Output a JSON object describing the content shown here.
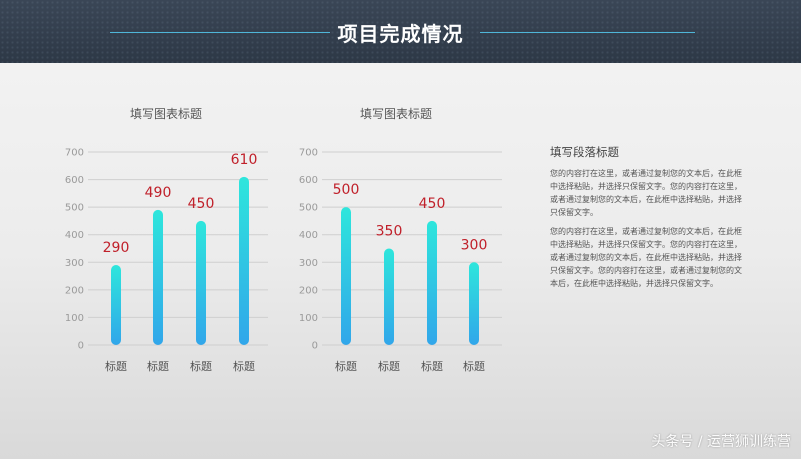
{
  "header": {
    "title": "项目完成情况"
  },
  "chart_data": [
    {
      "type": "bar",
      "title": "填写图表标题",
      "categories": [
        "标题",
        "标题",
        "标题",
        "标题"
      ],
      "values": [
        290,
        490,
        450,
        610
      ],
      "ylim": [
        0,
        700
      ],
      "yticks": [
        0,
        100,
        200,
        300,
        400,
        500,
        600,
        700
      ],
      "grid": true
    },
    {
      "type": "bar",
      "title": "填写图表标题",
      "categories": [
        "标题",
        "标题",
        "标题",
        "标题"
      ],
      "values": [
        500,
        350,
        450,
        300
      ],
      "ylim": [
        0,
        700
      ],
      "yticks": [
        0,
        100,
        200,
        300,
        400,
        500,
        600,
        700
      ],
      "grid": true
    }
  ],
  "paragraph": {
    "heading": "填写段落标题",
    "p1": "您的内容打在这里，或者通过复制您的文本后，在此框中选择粘贴，并选择只保留文字。您的内容打在这里，或者通过复制您的文本后，在此框中选择粘贴，并选择只保留文字。",
    "p2": "您的内容打在这里，或者通过复制您的文本后，在此框中选择粘贴，并选择只保留文字。您的内容打在这里，或者通过复制您的文本后，在此框中选择粘贴，并选择只保留文字。您的内容打在这里，或者通过复制您的文本后，在此框中选择粘贴，并选择只保留文字。"
  },
  "watermark": "头条号 / 运营狮训练营",
  "colors": {
    "bar_top": "#2ee6dc",
    "bar_bottom": "#31a6ea",
    "value_label": "#c0202a"
  }
}
